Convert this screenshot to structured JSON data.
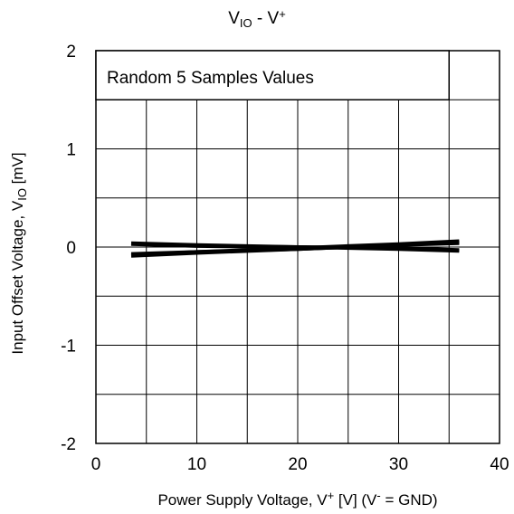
{
  "chart_data": {
    "type": "line",
    "title": {
      "main": "V",
      "sub": "IO",
      "mid": " - V",
      "sup": "+"
    },
    "xlabel": {
      "pre": "Power Supply Voltage, V",
      "sup1": "+",
      "mid": " [V] (V",
      "sup2": "-",
      "post": " = GND)"
    },
    "ylabel": {
      "pre": "Input Offset Voltage, V",
      "sub": "IO",
      "post": " [mV]"
    },
    "annotation": "Random 5 Samples Values",
    "xlim": [
      0,
      40
    ],
    "ylim": [
      -2,
      2
    ],
    "x_ticks": [
      0,
      10,
      20,
      30,
      40
    ],
    "y_ticks": [
      -2,
      -1,
      0,
      1,
      2
    ],
    "x_tick_labels": [
      "0",
      "10",
      "20",
      "30",
      "40"
    ],
    "y_tick_labels": [
      "-2",
      "-1",
      "0",
      "1",
      "2"
    ],
    "x_minor_step": 5,
    "y_minor_step": 0.5,
    "grid": true,
    "line_color": "#000000",
    "series": [
      {
        "x": [
          3.5,
          10,
          20,
          30,
          36
        ],
        "y": [
          -0.09,
          -0.06,
          -0.02,
          0.02,
          0.05
        ]
      },
      {
        "x": [
          3.5,
          10,
          20,
          30,
          36
        ],
        "y": [
          -0.07,
          -0.05,
          -0.01,
          0.03,
          0.06
        ]
      },
      {
        "x": [
          3.5,
          10,
          20,
          30,
          36
        ],
        "y": [
          0.03,
          0.01,
          0.0,
          -0.02,
          -0.04
        ]
      },
      {
        "x": [
          3.5,
          10,
          20,
          30,
          36
        ],
        "y": [
          0.04,
          0.02,
          0.0,
          -0.01,
          -0.03
        ]
      },
      {
        "x": [
          3.5,
          10,
          20,
          30,
          36
        ],
        "y": [
          -0.08,
          -0.05,
          -0.02,
          0.02,
          0.04
        ]
      }
    ]
  }
}
